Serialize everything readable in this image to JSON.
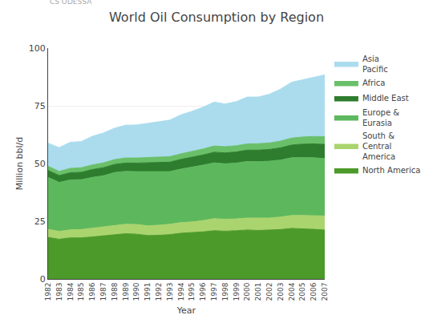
{
  "chart_data": {
    "type": "area",
    "title": "World Oil Consumption by Region",
    "ylabel": "Million bbl/d",
    "xlabel": "Year",
    "annotations": [
      "CS ODESSA"
    ],
    "stacked": true,
    "grid": true,
    "x": [
      1982,
      1983,
      1984,
      1985,
      1986,
      1987,
      1988,
      1989,
      1990,
      1991,
      1992,
      1993,
      1994,
      1995,
      1996,
      1997,
      1998,
      1999,
      2000,
      2001,
      2002,
      2003,
      2004,
      2005,
      2006,
      2007
    ],
    "xlim": [
      1982,
      2007
    ],
    "xticks": [
      1982,
      1983,
      1984,
      1985,
      1986,
      1987,
      1988,
      1989,
      1990,
      1991,
      1992,
      1993,
      1994,
      1995,
      1996,
      1997,
      1998,
      1999,
      2000,
      2001,
      2002,
      2003,
      2004,
      2005,
      2006,
      2007
    ],
    "ylim": [
      0,
      100
    ],
    "yticks": [
      0,
      25,
      50,
      75,
      100
    ],
    "series": [
      {
        "name": "North America",
        "color": "#4c9a2a",
        "values": [
          18.0,
          17.2,
          17.8,
          17.8,
          18.2,
          18.7,
          19.3,
          19.6,
          19.4,
          18.8,
          18.9,
          19.2,
          19.8,
          20.0,
          20.4,
          20.9,
          20.7,
          20.9,
          21.2,
          21.0,
          21.1,
          21.4,
          21.9,
          21.8,
          21.5,
          21.2
        ]
      },
      {
        "name": "South &\nCentral\nAmerica",
        "color": "#aad46e",
        "values": [
          3.5,
          3.4,
          3.5,
          3.6,
          3.8,
          3.9,
          4.0,
          4.1,
          4.2,
          4.2,
          4.4,
          4.5,
          4.6,
          4.7,
          4.9,
          5.2,
          5.2,
          5.1,
          5.2,
          5.3,
          5.3,
          5.4,
          5.6,
          5.7,
          5.9,
          6.1
        ]
      },
      {
        "name": "Europe &\nEurasia",
        "color": "#5db85d",
        "values": [
          22.5,
          21.2,
          21.6,
          21.6,
          22.0,
          22.1,
          22.8,
          22.9,
          22.9,
          23.5,
          23.0,
          22.8,
          23.2,
          23.7,
          24.0,
          24.2,
          24.0,
          24.2,
          24.5,
          24.5,
          24.6,
          24.7,
          25.0,
          25.1,
          25.1,
          24.8
        ]
      },
      {
        "name": "Middle East",
        "color": "#2e7d2e",
        "values": [
          3.0,
          3.0,
          3.1,
          3.2,
          3.4,
          3.5,
          3.5,
          3.6,
          3.7,
          3.8,
          4.0,
          4.1,
          4.2,
          4.3,
          4.4,
          4.6,
          4.7,
          4.8,
          4.9,
          5.0,
          5.1,
          5.3,
          5.5,
          5.8,
          6.0,
          6.2
        ]
      },
      {
        "name": "Africa",
        "color": "#6abf69",
        "values": [
          1.8,
          1.8,
          1.9,
          2.0,
          2.0,
          2.1,
          2.1,
          2.2,
          2.2,
          2.3,
          2.3,
          2.4,
          2.4,
          2.5,
          2.6,
          2.7,
          2.7,
          2.7,
          2.7,
          2.8,
          2.8,
          2.9,
          3.0,
          3.1,
          3.2,
          3.3
        ]
      },
      {
        "name": "Asia\nPacific",
        "color": "#aadcee",
        "values": [
          10.0,
          10.3,
          11.3,
          11.3,
          12.4,
          12.9,
          13.6,
          14.2,
          14.3,
          14.8,
          15.4,
          15.8,
          16.9,
          17.4,
          18.1,
          19.0,
          18.5,
          19.1,
          20.3,
          20.2,
          21.1,
          22.5,
          24.2,
          24.7,
          25.6,
          26.8
        ]
      }
    ]
  }
}
